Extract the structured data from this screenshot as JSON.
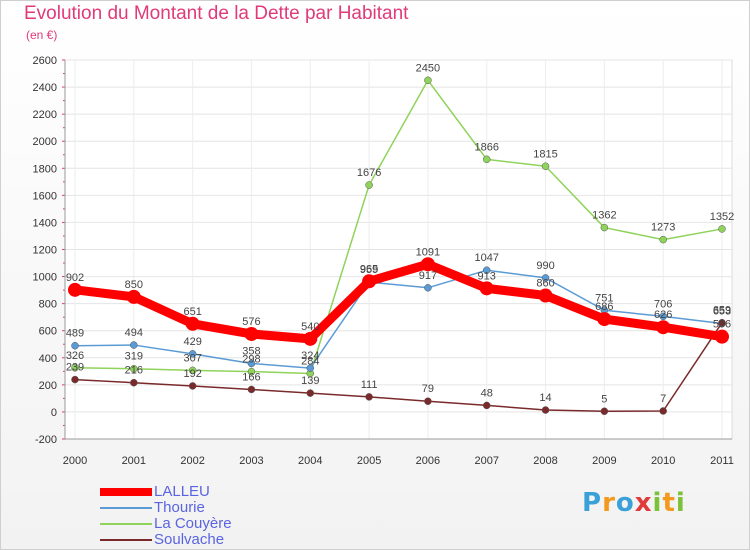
{
  "title": "Evolution du Montant de la Dette par Habitant",
  "subtitle": "(en €)",
  "logo": {
    "text": "Proxiti",
    "letters": [
      {
        "c": "P",
        "color": "#3aa0d8"
      },
      {
        "c": "r",
        "color": "#f39a1e"
      },
      {
        "c": "o",
        "color": "#3aa0d8"
      },
      {
        "c": "x",
        "color": "#e03a3a"
      },
      {
        "c": "i",
        "color": "#7cc13a"
      },
      {
        "c": "t",
        "color": "#f39a1e"
      },
      {
        "c": "i",
        "color": "#7cc13a"
      }
    ]
  },
  "chart_data": {
    "type": "line",
    "title": "Evolution du Montant de la Dette par Habitant",
    "ylabel": "(en €)",
    "x": [
      "2000",
      "2001",
      "2002",
      "2003",
      "2004",
      "2005",
      "2006",
      "2007",
      "2008",
      "2009",
      "2010",
      "2011"
    ],
    "ylim": [
      -200,
      2600
    ],
    "yticks": [
      -200,
      0,
      200,
      400,
      600,
      800,
      1000,
      1200,
      1400,
      1600,
      1800,
      2000,
      2200,
      2400,
      2600
    ],
    "grid": true,
    "legend": "bottom-left",
    "series": [
      {
        "name": "LALLEU",
        "color": "#ff0000",
        "values": [
          902,
          850,
          651,
          576,
          540,
          965,
          1091,
          913,
          860,
          686,
          626,
          556
        ]
      },
      {
        "name": "Thourie",
        "color": "#5b9bd5",
        "values": [
          489,
          494,
          429,
          358,
          324,
          959,
          917,
          1047,
          990,
          751,
          706,
          653
        ]
      },
      {
        "name": "La Couyère",
        "color": "#8fd35a",
        "values": [
          326,
          319,
          307,
          298,
          284,
          1676,
          2450,
          1866,
          1815,
          1362,
          1273,
          1352
        ]
      },
      {
        "name": "Soulvache",
        "color": "#7a2a2a",
        "values": [
          239,
          216,
          192,
          166,
          139,
          111,
          79,
          48,
          14,
          5,
          7,
          659
        ]
      }
    ]
  }
}
